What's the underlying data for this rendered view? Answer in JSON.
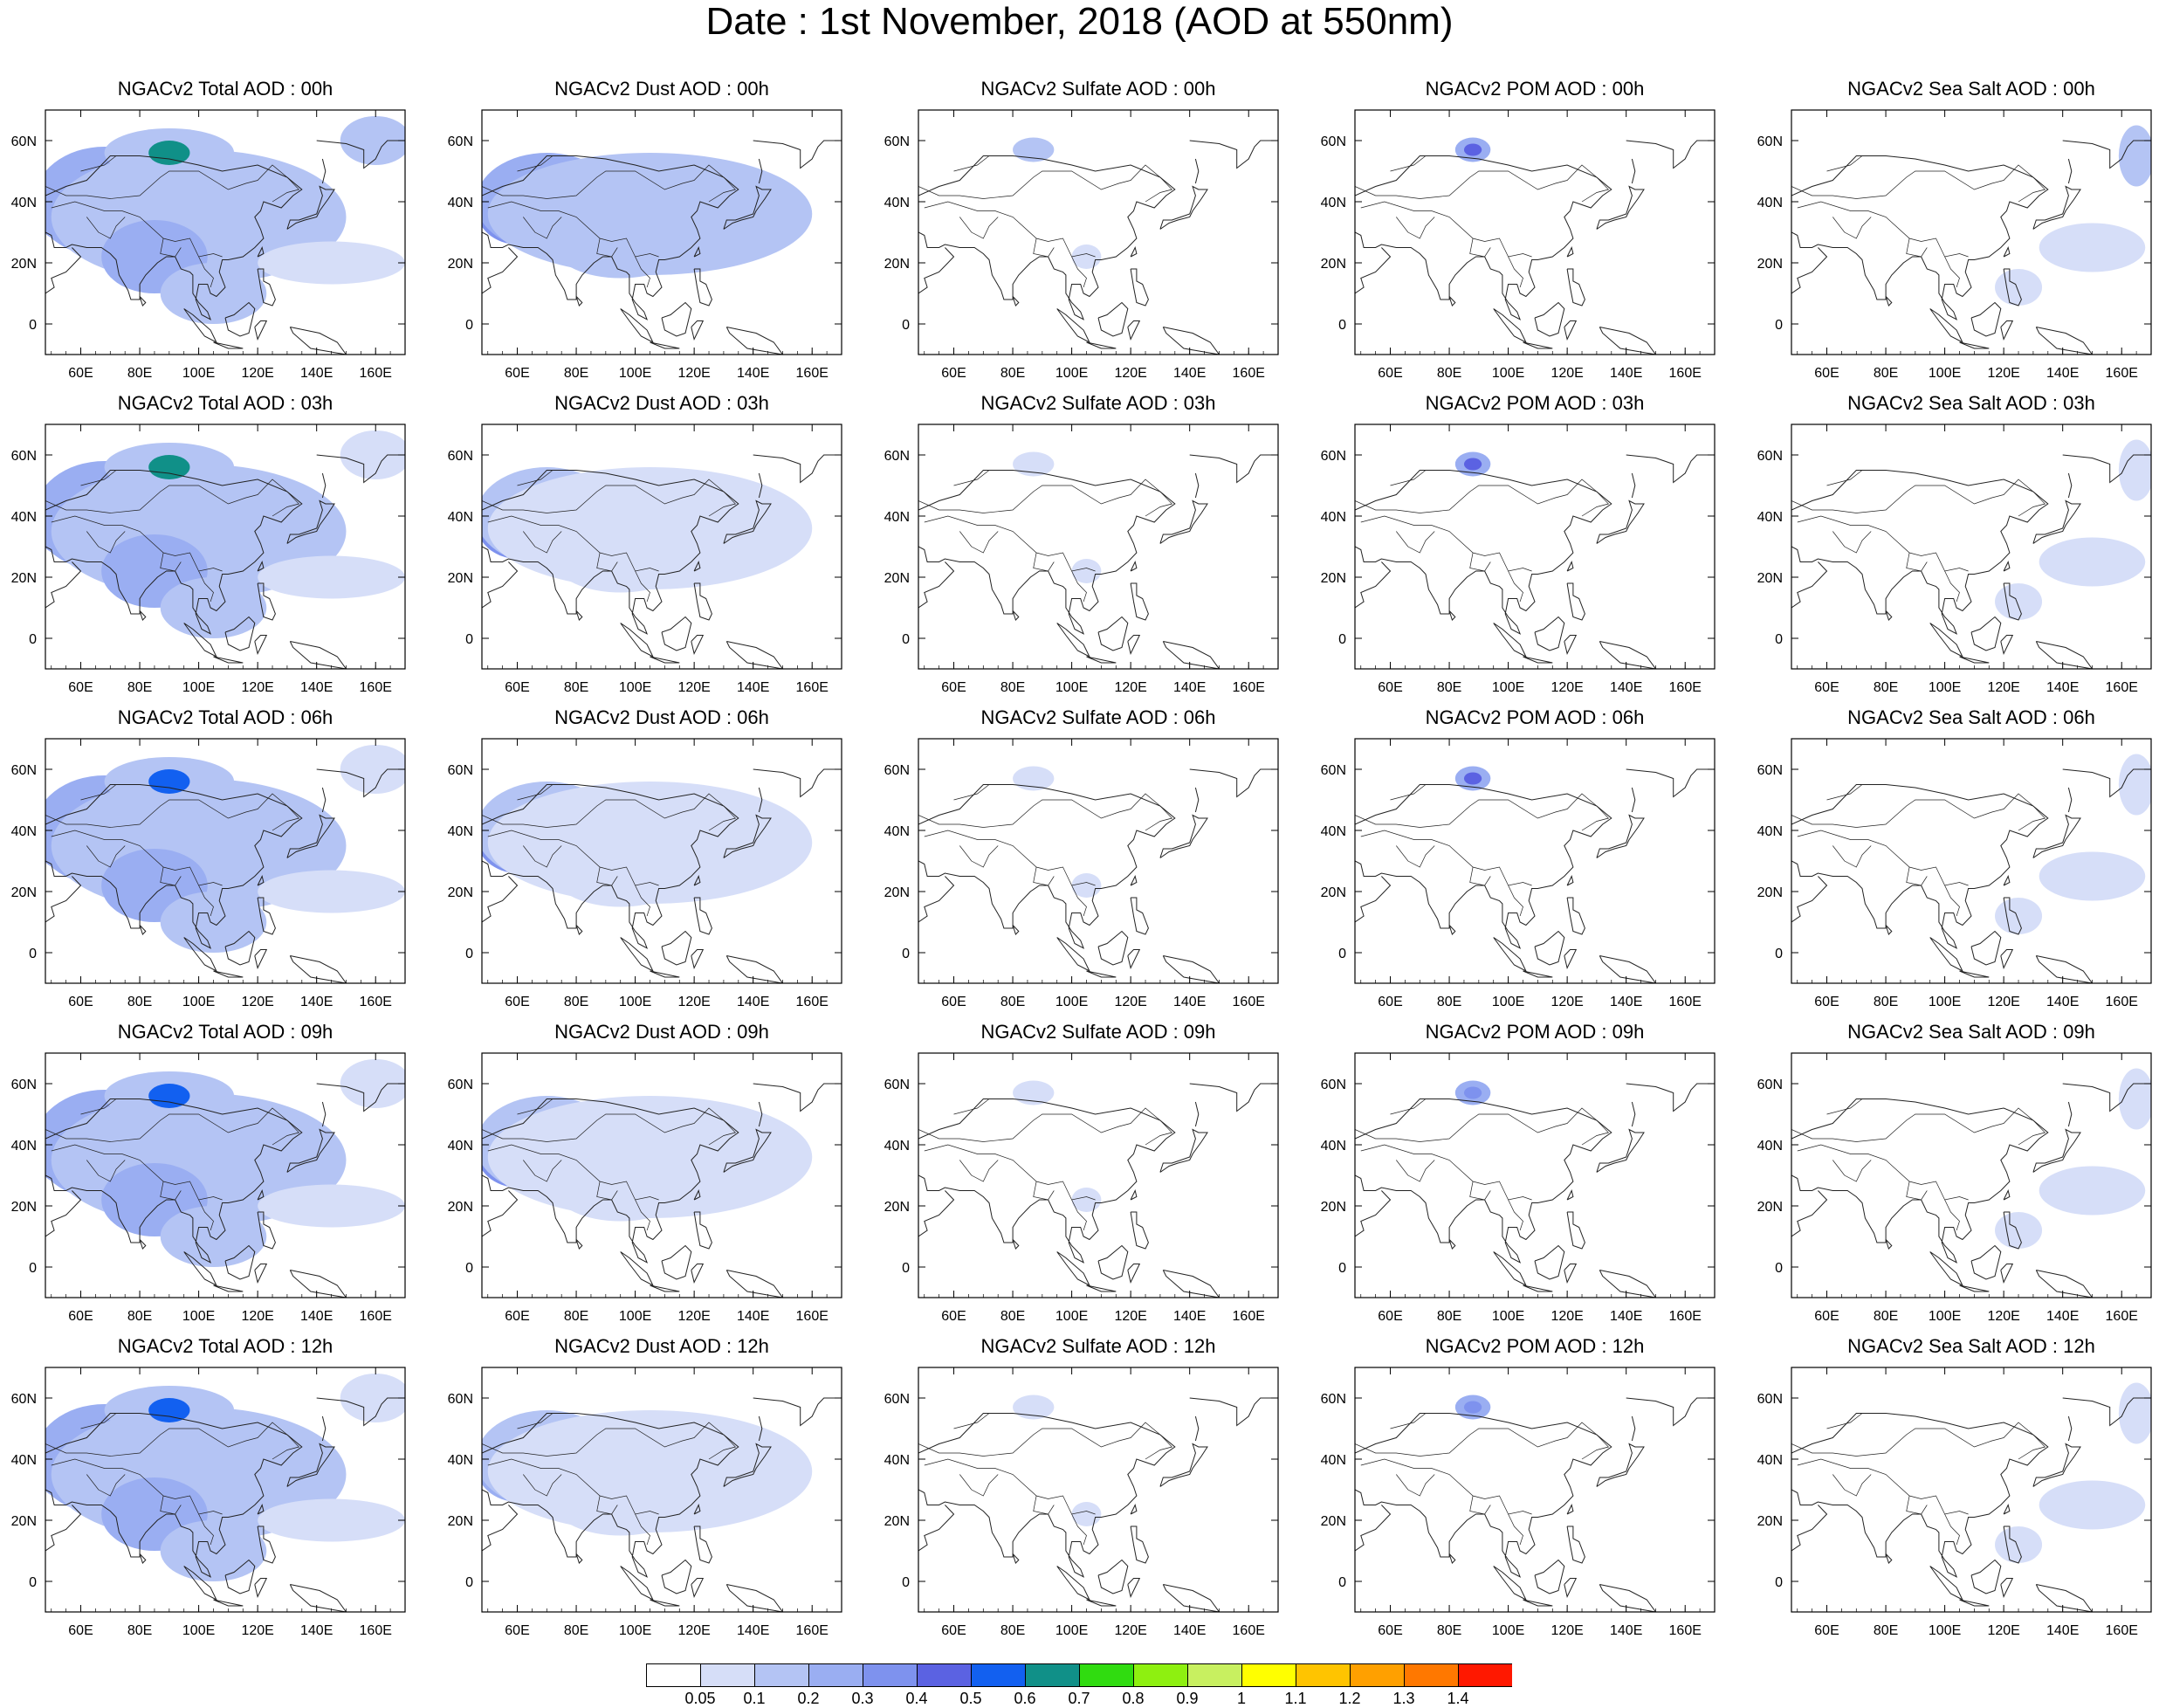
{
  "title": "Date : 1st November, 2018 (AOD at 550nm)",
  "panel_titles": [
    [
      "NGACv2 Total AOD : 00h",
      "NGACv2 Dust AOD : 00h",
      "NGACv2 Sulfate AOD : 00h",
      "NGACv2 POM AOD : 00h",
      "NGACv2 Sea Salt AOD : 00h"
    ],
    [
      "NGACv2 Total AOD : 03h",
      "NGACv2 Dust AOD : 03h",
      "NGACv2 Sulfate AOD : 03h",
      "NGACv2 POM AOD : 03h",
      "NGACv2 Sea Salt AOD : 03h"
    ],
    [
      "NGACv2 Total AOD : 06h",
      "NGACv2 Dust AOD : 06h",
      "NGACv2 Sulfate AOD : 06h",
      "NGACv2 POM AOD : 06h",
      "NGACv2 Sea Salt AOD : 06h"
    ],
    [
      "NGACv2 Total AOD : 09h",
      "NGACv2 Dust AOD : 09h",
      "NGACv2 Sulfate AOD : 09h",
      "NGACv2 POM AOD : 09h",
      "NGACv2 Sea Salt  AOD : 09h"
    ],
    [
      "NGACv2 Total AOD  : 12h",
      "NGACv2 Dust AOD : 12h",
      "NGACv2 Sulfate AOD : 12h",
      "NGACv2 POM  AOD : 12h",
      "NGACv2 Sea Salt  AOD : 12h"
    ]
  ],
  "map": {
    "lon_range": [
      48,
      170
    ],
    "lat_range": [
      -10,
      70
    ],
    "lon_ticks": [
      60,
      80,
      100,
      120,
      140,
      160
    ],
    "lon_tick_labels": [
      "60E",
      "80E",
      "100E",
      "120E",
      "140E",
      "160E"
    ],
    "lat_ticks": [
      0,
      20,
      40,
      60
    ],
    "lat_tick_labels": [
      "0",
      "20N",
      "40N",
      "60N"
    ]
  },
  "colorbar": {
    "levels": [
      "0.05",
      "0.1",
      "0.2",
      "0.3",
      "0.4",
      "0.5",
      "0.6",
      "0.7",
      "0.8",
      "0.9",
      "1",
      "1.1",
      "1.2",
      "1.3",
      "1.4"
    ],
    "colors": [
      "#ffffff",
      "#d6def8",
      "#b4c4f4",
      "#9aaef2",
      "#7e92ee",
      "#5b62e2",
      "#1260f0",
      "#109088",
      "#30dc10",
      "#8ef010",
      "#c8f060",
      "#ffff00",
      "#ffc400",
      "#ffa000",
      "#ff7800",
      "#ff1800"
    ]
  },
  "fields": {
    "total": [
      {
        "lon": 58,
        "lat": 38,
        "rx": 14,
        "ry": 12,
        "level": 0.35
      },
      {
        "lon": 68,
        "lat": 40,
        "rx": 24,
        "ry": 18,
        "level": 0.25
      },
      {
        "lon": 100,
        "lat": 35,
        "rx": 50,
        "ry": 22,
        "level": 0.15
      },
      {
        "lon": 90,
        "lat": 56,
        "rx": 22,
        "ry": 8,
        "level": 0.15
      },
      {
        "lon": 90,
        "lat": 56,
        "rx": 7,
        "ry": 4,
        "level": 0.65
      },
      {
        "lon": 85,
        "lat": 22,
        "rx": 18,
        "ry": 12,
        "level": 0.25
      },
      {
        "lon": 105,
        "lat": 10,
        "rx": 18,
        "ry": 10,
        "level": 0.15
      },
      {
        "lon": 145,
        "lat": 20,
        "rx": 25,
        "ry": 7,
        "level": 0.08
      },
      {
        "lon": 160,
        "lat": 60,
        "rx": 12,
        "ry": 8,
        "level": 0.1
      }
    ],
    "dust": [
      {
        "lon": 60,
        "lat": 38,
        "rx": 14,
        "ry": 12,
        "level": 0.35
      },
      {
        "lon": 70,
        "lat": 40,
        "rx": 24,
        "ry": 16,
        "level": 0.2
      },
      {
        "lon": 105,
        "lat": 36,
        "rx": 55,
        "ry": 20,
        "level": 0.1
      },
      {
        "lon": 95,
        "lat": 25,
        "rx": 22,
        "ry": 10,
        "level": 0.1
      }
    ],
    "sulfate": [
      {
        "lon": 87,
        "lat": 57,
        "rx": 7,
        "ry": 4,
        "level": 0.1
      },
      {
        "lon": 105,
        "lat": 22,
        "rx": 5,
        "ry": 4,
        "level": 0.08
      }
    ],
    "pom": [
      {
        "lon": 88,
        "lat": 57,
        "rx": 6,
        "ry": 4,
        "level": 0.25
      },
      {
        "lon": 88,
        "lat": 57,
        "rx": 3,
        "ry": 2,
        "level": 0.45
      }
    ],
    "seasalt": [
      {
        "lon": 150,
        "lat": 25,
        "rx": 18,
        "ry": 8,
        "level": 0.08
      },
      {
        "lon": 125,
        "lat": 12,
        "rx": 8,
        "ry": 6,
        "level": 0.08
      },
      {
        "lon": 165,
        "lat": 55,
        "rx": 6,
        "ry": 10,
        "level": 0.1
      }
    ]
  }
}
